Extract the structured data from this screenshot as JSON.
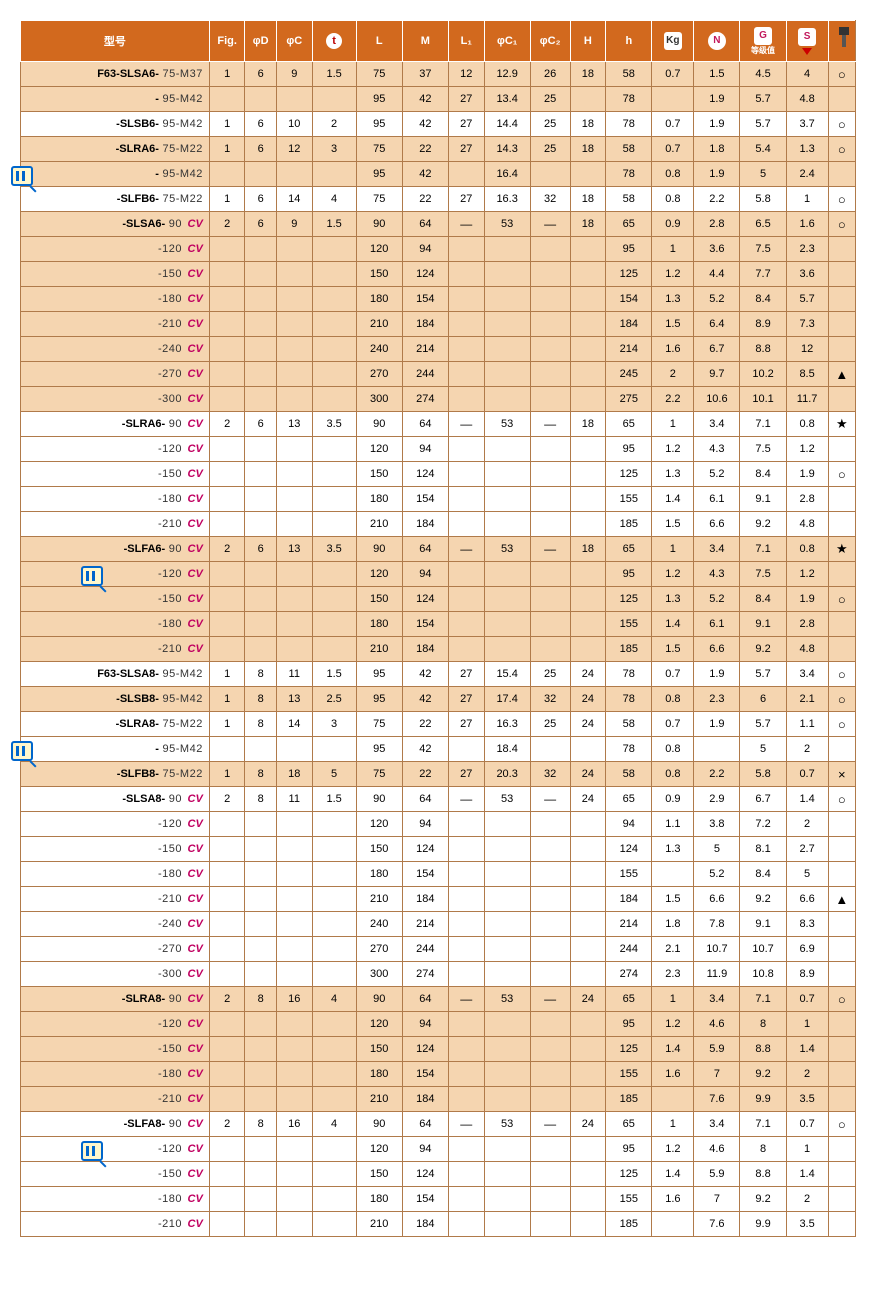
{
  "headers": {
    "model": "型号",
    "fig": "Fig.",
    "phiD": "φD",
    "phiC": "φC",
    "t": "t",
    "L": "L",
    "M": "M",
    "L1": "L₁",
    "phiC1": "φC₁",
    "phiC2": "φC₂",
    "H": "H",
    "h": "h",
    "kg": "Kg",
    "N": "N",
    "G": "G",
    "G_sub": "等级值",
    "S": "S",
    "sym": ""
  },
  "colors": {
    "header_bg": "#d2691e",
    "row_odd": "#f5d5b0",
    "row_even": "#ffffff",
    "border": "#b07a4a",
    "cv": "#c00060"
  },
  "rows": [
    {
      "m": [
        "F63",
        "-SLSA6-",
        " 75-M37",
        ""
      ],
      "fig": "1",
      "d": "6",
      "c": "9",
      "t": "1.5",
      "L": "75",
      "M": "37",
      "L1": "12",
      "C1": "12.9",
      "C2": "26",
      "H": "18",
      "h": "58",
      "kg": "0.7",
      "N": "1.5",
      "G": "4.5",
      "S": "4",
      "sym": "○",
      "odd": 1,
      "badge": ""
    },
    {
      "m": [
        "",
        "-",
        " 95-M42",
        ""
      ],
      "fig": "",
      "d": "",
      "c": "",
      "t": "",
      "L": "95",
      "M": "42",
      "L1": "27",
      "C1": "13.4",
      "C2": "25",
      "H": "",
      "h": "78",
      "kg": "",
      "N": "1.9",
      "G": "5.7",
      "S": "4.8",
      "sym": "",
      "odd": 1,
      "badge": ""
    },
    {
      "m": [
        "",
        "-SLSB6-",
        " 95-M42",
        ""
      ],
      "fig": "1",
      "d": "6",
      "c": "10",
      "t": "2",
      "L": "95",
      "M": "42",
      "L1": "27",
      "C1": "14.4",
      "C2": "25",
      "H": "18",
      "h": "78",
      "kg": "0.7",
      "N": "1.9",
      "G": "5.7",
      "S": "3.7",
      "sym": "○",
      "odd": 0,
      "badge": ""
    },
    {
      "m": [
        "",
        "-SLRA6-",
        " 75-M22",
        ""
      ],
      "fig": "1",
      "d": "6",
      "c": "12",
      "t": "3",
      "L": "75",
      "M": "22",
      "L1": "27",
      "C1": "14.3",
      "C2": "25",
      "H": "18",
      "h": "58",
      "kg": "0.7",
      "N": "1.8",
      "G": "5.4",
      "S": "1.3",
      "sym": "○",
      "odd": 1,
      "badge": ""
    },
    {
      "m": [
        "",
        "-",
        " 95-M42",
        ""
      ],
      "fig": "",
      "d": "",
      "c": "",
      "t": "",
      "L": "95",
      "M": "42",
      "L1": "",
      "C1": "16.4",
      "C2": "",
      "H": "",
      "h": "78",
      "kg": "0.8",
      "N": "1.9",
      "G": "5",
      "S": "2.4",
      "sym": "",
      "odd": 1,
      "badge": "left"
    },
    {
      "m": [
        "",
        "-SLFB6-",
        " 75-M22",
        ""
      ],
      "fig": "1",
      "d": "6",
      "c": "14",
      "t": "4",
      "L": "75",
      "M": "22",
      "L1": "27",
      "C1": "16.3",
      "C2": "32",
      "H": "18",
      "h": "58",
      "kg": "0.8",
      "N": "2.2",
      "G": "5.8",
      "S": "1",
      "sym": "○",
      "odd": 0,
      "badge": ""
    },
    {
      "m": [
        "",
        "-SLSA6-",
        " 90 ",
        "cv"
      ],
      "fig": "2",
      "d": "6",
      "c": "9",
      "t": "1.5",
      "L": "90",
      "M": "64",
      "L1": "—",
      "C1": "53",
      "C2": "—",
      "H": "18",
      "h": "65",
      "kg": "0.9",
      "N": "2.8",
      "G": "6.5",
      "S": "1.6",
      "sym": "○",
      "odd": 1,
      "badge": ""
    },
    {
      "m": [
        "",
        "",
        "-120 ",
        "cv"
      ],
      "fig": "",
      "d": "",
      "c": "",
      "t": "",
      "L": "120",
      "M": "94",
      "L1": "",
      "C1": "",
      "C2": "",
      "H": "",
      "h": "95",
      "kg": "1",
      "N": "3.6",
      "G": "7.5",
      "S": "2.3",
      "sym": "",
      "odd": 1,
      "badge": ""
    },
    {
      "m": [
        "",
        "",
        "-150 ",
        "cv"
      ],
      "fig": "",
      "d": "",
      "c": "",
      "t": "",
      "L": "150",
      "M": "124",
      "L1": "",
      "C1": "",
      "C2": "",
      "H": "",
      "h": "125",
      "kg": "1.2",
      "N": "4.4",
      "G": "7.7",
      "S": "3.6",
      "sym": "",
      "odd": 1,
      "badge": ""
    },
    {
      "m": [
        "",
        "",
        "-180 ",
        "cv"
      ],
      "fig": "",
      "d": "",
      "c": "",
      "t": "",
      "L": "180",
      "M": "154",
      "L1": "",
      "C1": "",
      "C2": "",
      "H": "",
      "h": "154",
      "kg": "1.3",
      "N": "5.2",
      "G": "8.4",
      "S": "5.7",
      "sym": "",
      "odd": 1,
      "badge": ""
    },
    {
      "m": [
        "",
        "",
        "-210 ",
        "cv"
      ],
      "fig": "",
      "d": "",
      "c": "",
      "t": "",
      "L": "210",
      "M": "184",
      "L1": "",
      "C1": "",
      "C2": "",
      "H": "",
      "h": "184",
      "kg": "1.5",
      "N": "6.4",
      "G": "8.9",
      "S": "7.3",
      "sym": "",
      "odd": 1,
      "badge": ""
    },
    {
      "m": [
        "",
        "",
        "-240 ",
        "cv"
      ],
      "fig": "",
      "d": "",
      "c": "",
      "t": "",
      "L": "240",
      "M": "214",
      "L1": "",
      "C1": "",
      "C2": "",
      "H": "",
      "h": "214",
      "kg": "1.6",
      "N": "6.7",
      "G": "8.8",
      "S": "12",
      "sym": "",
      "odd": 1,
      "badge": ""
    },
    {
      "m": [
        "",
        "",
        "-270 ",
        "cv"
      ],
      "fig": "",
      "d": "",
      "c": "",
      "t": "",
      "L": "270",
      "M": "244",
      "L1": "",
      "C1": "",
      "C2": "",
      "H": "",
      "h": "245",
      "kg": "2",
      "N": "9.7",
      "G": "10.2",
      "S": "8.5",
      "sym": "▲",
      "odd": 1,
      "badge": ""
    },
    {
      "m": [
        "",
        "",
        "-300 ",
        "cv"
      ],
      "fig": "",
      "d": "",
      "c": "",
      "t": "",
      "L": "300",
      "M": "274",
      "L1": "",
      "C1": "",
      "C2": "",
      "H": "",
      "h": "275",
      "kg": "2.2",
      "N": "10.6",
      "G": "10.1",
      "S": "11.7",
      "sym": "",
      "odd": 1,
      "badge": ""
    },
    {
      "m": [
        "",
        "-SLRA6-",
        " 90 ",
        "cv"
      ],
      "fig": "2",
      "d": "6",
      "c": "13",
      "t": "3.5",
      "L": "90",
      "M": "64",
      "L1": "—",
      "C1": "53",
      "C2": "—",
      "H": "18",
      "h": "65",
      "kg": "1",
      "N": "3.4",
      "G": "7.1",
      "S": "0.8",
      "sym": "★",
      "odd": 0,
      "badge": ""
    },
    {
      "m": [
        "",
        "",
        "-120 ",
        "cv"
      ],
      "fig": "",
      "d": "",
      "c": "",
      "t": "",
      "L": "120",
      "M": "94",
      "L1": "",
      "C1": "",
      "C2": "",
      "H": "",
      "h": "95",
      "kg": "1.2",
      "N": "4.3",
      "G": "7.5",
      "S": "1.2",
      "sym": "",
      "odd": 0,
      "badge": ""
    },
    {
      "m": [
        "",
        "",
        "-150 ",
        "cv"
      ],
      "fig": "",
      "d": "",
      "c": "",
      "t": "",
      "L": "150",
      "M": "124",
      "L1": "",
      "C1": "",
      "C2": "",
      "H": "",
      "h": "125",
      "kg": "1.3",
      "N": "5.2",
      "G": "8.4",
      "S": "1.9",
      "sym": "○",
      "odd": 0,
      "badge": ""
    },
    {
      "m": [
        "",
        "",
        "-180 ",
        "cv"
      ],
      "fig": "",
      "d": "",
      "c": "",
      "t": "",
      "L": "180",
      "M": "154",
      "L1": "",
      "C1": "",
      "C2": "",
      "H": "",
      "h": "155",
      "kg": "1.4",
      "N": "6.1",
      "G": "9.1",
      "S": "2.8",
      "sym": "",
      "odd": 0,
      "badge": ""
    },
    {
      "m": [
        "",
        "",
        "-210 ",
        "cv"
      ],
      "fig": "",
      "d": "",
      "c": "",
      "t": "",
      "L": "210",
      "M": "184",
      "L1": "",
      "C1": "",
      "C2": "",
      "H": "",
      "h": "185",
      "kg": "1.5",
      "N": "6.6",
      "G": "9.2",
      "S": "4.8",
      "sym": "",
      "odd": 0,
      "badge": ""
    },
    {
      "m": [
        "",
        "-SLFA6-",
        " 90 ",
        "cv"
      ],
      "fig": "2",
      "d": "6",
      "c": "13",
      "t": "3.5",
      "L": "90",
      "M": "64",
      "L1": "—",
      "C1": "53",
      "C2": "—",
      "H": "18",
      "h": "65",
      "kg": "1",
      "N": "3.4",
      "G": "7.1",
      "S": "0.8",
      "sym": "★",
      "odd": 1,
      "badge": ""
    },
    {
      "m": [
        "",
        "",
        "-120 ",
        "cv"
      ],
      "fig": "",
      "d": "",
      "c": "",
      "t": "",
      "L": "120",
      "M": "94",
      "L1": "",
      "C1": "",
      "C2": "",
      "H": "",
      "h": "95",
      "kg": "1.2",
      "N": "4.3",
      "G": "7.5",
      "S": "1.2",
      "sym": "",
      "odd": 1,
      "badge": "in"
    },
    {
      "m": [
        "",
        "",
        "-150 ",
        "cv"
      ],
      "fig": "",
      "d": "",
      "c": "",
      "t": "",
      "L": "150",
      "M": "124",
      "L1": "",
      "C1": "",
      "C2": "",
      "H": "",
      "h": "125",
      "kg": "1.3",
      "N": "5.2",
      "G": "8.4",
      "S": "1.9",
      "sym": "○",
      "odd": 1,
      "badge": ""
    },
    {
      "m": [
        "",
        "",
        "-180 ",
        "cv"
      ],
      "fig": "",
      "d": "",
      "c": "",
      "t": "",
      "L": "180",
      "M": "154",
      "L1": "",
      "C1": "",
      "C2": "",
      "H": "",
      "h": "155",
      "kg": "1.4",
      "N": "6.1",
      "G": "9.1",
      "S": "2.8",
      "sym": "",
      "odd": 1,
      "badge": ""
    },
    {
      "m": [
        "",
        "",
        "-210 ",
        "cv"
      ],
      "fig": "",
      "d": "",
      "c": "",
      "t": "",
      "L": "210",
      "M": "184",
      "L1": "",
      "C1": "",
      "C2": "",
      "H": "",
      "h": "185",
      "kg": "1.5",
      "N": "6.6",
      "G": "9.2",
      "S": "4.8",
      "sym": "",
      "odd": 1,
      "badge": ""
    },
    {
      "m": [
        "F63",
        "-SLSA8-",
        " 95-M42",
        ""
      ],
      "fig": "1",
      "d": "8",
      "c": "11",
      "t": "1.5",
      "L": "95",
      "M": "42",
      "L1": "27",
      "C1": "15.4",
      "C2": "25",
      "H": "24",
      "h": "78",
      "kg": "0.7",
      "N": "1.9",
      "G": "5.7",
      "S": "3.4",
      "sym": "○",
      "odd": 0,
      "badge": ""
    },
    {
      "m": [
        "",
        "-SLSB8-",
        " 95-M42",
        ""
      ],
      "fig": "1",
      "d": "8",
      "c": "13",
      "t": "2.5",
      "L": "95",
      "M": "42",
      "L1": "27",
      "C1": "17.4",
      "C2": "32",
      "H": "24",
      "h": "78",
      "kg": "0.8",
      "N": "2.3",
      "G": "6",
      "S": "2.1",
      "sym": "○",
      "odd": 1,
      "badge": ""
    },
    {
      "m": [
        "",
        "-SLRA8-",
        " 75-M22",
        ""
      ],
      "fig": "1",
      "d": "8",
      "c": "14",
      "t": "3",
      "L": "75",
      "M": "22",
      "L1": "27",
      "C1": "16.3",
      "C2": "25",
      "H": "24",
      "h": "58",
      "kg": "0.7",
      "N": "1.9",
      "G": "5.7",
      "S": "1.1",
      "sym": "○",
      "odd": 0,
      "badge": ""
    },
    {
      "m": [
        "",
        "-",
        " 95-M42",
        ""
      ],
      "fig": "",
      "d": "",
      "c": "",
      "t": "",
      "L": "95",
      "M": "42",
      "L1": "",
      "C1": "18.4",
      "C2": "",
      "H": "",
      "h": "78",
      "kg": "0.8",
      "N": "",
      "G": "5",
      "S": "2",
      "sym": "",
      "odd": 0,
      "badge": "left"
    },
    {
      "m": [
        "",
        "-SLFB8-",
        " 75-M22",
        ""
      ],
      "fig": "1",
      "d": "8",
      "c": "18",
      "t": "5",
      "L": "75",
      "M": "22",
      "L1": "27",
      "C1": "20.3",
      "C2": "32",
      "H": "24",
      "h": "58",
      "kg": "0.8",
      "N": "2.2",
      "G": "5.8",
      "S": "0.7",
      "sym": "×",
      "odd": 1,
      "badge": ""
    },
    {
      "m": [
        "",
        "-SLSA8-",
        " 90 ",
        "cv"
      ],
      "fig": "2",
      "d": "8",
      "c": "11",
      "t": "1.5",
      "L": "90",
      "M": "64",
      "L1": "—",
      "C1": "53",
      "C2": "—",
      "H": "24",
      "h": "65",
      "kg": "0.9",
      "N": "2.9",
      "G": "6.7",
      "S": "1.4",
      "sym": "○",
      "odd": 0,
      "badge": ""
    },
    {
      "m": [
        "",
        "",
        "-120 ",
        "cv"
      ],
      "fig": "",
      "d": "",
      "c": "",
      "t": "",
      "L": "120",
      "M": "94",
      "L1": "",
      "C1": "",
      "C2": "",
      "H": "",
      "h": "94",
      "kg": "1.1",
      "N": "3.8",
      "G": "7.2",
      "S": "2",
      "sym": "",
      "odd": 0,
      "badge": ""
    },
    {
      "m": [
        "",
        "",
        "-150 ",
        "cv"
      ],
      "fig": "",
      "d": "",
      "c": "",
      "t": "",
      "L": "150",
      "M": "124",
      "L1": "",
      "C1": "",
      "C2": "",
      "H": "",
      "h": "124",
      "kg": "1.3",
      "N": "5",
      "G": "8.1",
      "S": "2.7",
      "sym": "",
      "odd": 0,
      "badge": ""
    },
    {
      "m": [
        "",
        "",
        "-180 ",
        "cv"
      ],
      "fig": "",
      "d": "",
      "c": "",
      "t": "",
      "L": "180",
      "M": "154",
      "L1": "",
      "C1": "",
      "C2": "",
      "H": "",
      "h": "155",
      "kg": "",
      "N": "5.2",
      "G": "8.4",
      "S": "5",
      "sym": "",
      "odd": 0,
      "badge": ""
    },
    {
      "m": [
        "",
        "",
        "-210 ",
        "cv"
      ],
      "fig": "",
      "d": "",
      "c": "",
      "t": "",
      "L": "210",
      "M": "184",
      "L1": "",
      "C1": "",
      "C2": "",
      "H": "",
      "h": "184",
      "kg": "1.5",
      "N": "6.6",
      "G": "9.2",
      "S": "6.6",
      "sym": "▲",
      "odd": 0,
      "badge": ""
    },
    {
      "m": [
        "",
        "",
        "-240 ",
        "cv"
      ],
      "fig": "",
      "d": "",
      "c": "",
      "t": "",
      "L": "240",
      "M": "214",
      "L1": "",
      "C1": "",
      "C2": "",
      "H": "",
      "h": "214",
      "kg": "1.8",
      "N": "7.8",
      "G": "9.1",
      "S": "8.3",
      "sym": "",
      "odd": 0,
      "badge": ""
    },
    {
      "m": [
        "",
        "",
        "-270 ",
        "cv"
      ],
      "fig": "",
      "d": "",
      "c": "",
      "t": "",
      "L": "270",
      "M": "244",
      "L1": "",
      "C1": "",
      "C2": "",
      "H": "",
      "h": "244",
      "kg": "2.1",
      "N": "10.7",
      "G": "10.7",
      "S": "6.9",
      "sym": "",
      "odd": 0,
      "badge": ""
    },
    {
      "m": [
        "",
        "",
        "-300 ",
        "cv"
      ],
      "fig": "",
      "d": "",
      "c": "",
      "t": "",
      "L": "300",
      "M": "274",
      "L1": "",
      "C1": "",
      "C2": "",
      "H": "",
      "h": "274",
      "kg": "2.3",
      "N": "11.9",
      "G": "10.8",
      "S": "8.9",
      "sym": "",
      "odd": 0,
      "badge": ""
    },
    {
      "m": [
        "",
        "-SLRA8-",
        " 90 ",
        "cv"
      ],
      "fig": "2",
      "d": "8",
      "c": "16",
      "t": "4",
      "L": "90",
      "M": "64",
      "L1": "—",
      "C1": "53",
      "C2": "—",
      "H": "24",
      "h": "65",
      "kg": "1",
      "N": "3.4",
      "G": "7.1",
      "S": "0.7",
      "sym": "○",
      "odd": 1,
      "badge": ""
    },
    {
      "m": [
        "",
        "",
        "-120 ",
        "cv"
      ],
      "fig": "",
      "d": "",
      "c": "",
      "t": "",
      "L": "120",
      "M": "94",
      "L1": "",
      "C1": "",
      "C2": "",
      "H": "",
      "h": "95",
      "kg": "1.2",
      "N": "4.6",
      "G": "8",
      "S": "1",
      "sym": "",
      "odd": 1,
      "badge": ""
    },
    {
      "m": [
        "",
        "",
        "-150 ",
        "cv"
      ],
      "fig": "",
      "d": "",
      "c": "",
      "t": "",
      "L": "150",
      "M": "124",
      "L1": "",
      "C1": "",
      "C2": "",
      "H": "",
      "h": "125",
      "kg": "1.4",
      "N": "5.9",
      "G": "8.8",
      "S": "1.4",
      "sym": "",
      "odd": 1,
      "badge": ""
    },
    {
      "m": [
        "",
        "",
        "-180 ",
        "cv"
      ],
      "fig": "",
      "d": "",
      "c": "",
      "t": "",
      "L": "180",
      "M": "154",
      "L1": "",
      "C1": "",
      "C2": "",
      "H": "",
      "h": "155",
      "kg": "1.6",
      "N": "7",
      "G": "9.2",
      "S": "2",
      "sym": "",
      "odd": 1,
      "badge": ""
    },
    {
      "m": [
        "",
        "",
        "-210 ",
        "cv"
      ],
      "fig": "",
      "d": "",
      "c": "",
      "t": "",
      "L": "210",
      "M": "184",
      "L1": "",
      "C1": "",
      "C2": "",
      "H": "",
      "h": "185",
      "kg": "",
      "N": "7.6",
      "G": "9.9",
      "S": "3.5",
      "sym": "",
      "odd": 1,
      "badge": ""
    },
    {
      "m": [
        "",
        "-SLFA8-",
        " 90 ",
        "cv"
      ],
      "fig": "2",
      "d": "8",
      "c": "16",
      "t": "4",
      "L": "90",
      "M": "64",
      "L1": "—",
      "C1": "53",
      "C2": "—",
      "H": "24",
      "h": "65",
      "kg": "1",
      "N": "3.4",
      "G": "7.1",
      "S": "0.7",
      "sym": "○",
      "odd": 0,
      "badge": ""
    },
    {
      "m": [
        "",
        "",
        "-120 ",
        "cv"
      ],
      "fig": "",
      "d": "",
      "c": "",
      "t": "",
      "L": "120",
      "M": "94",
      "L1": "",
      "C1": "",
      "C2": "",
      "H": "",
      "h": "95",
      "kg": "1.2",
      "N": "4.6",
      "G": "8",
      "S": "1",
      "sym": "",
      "odd": 0,
      "badge": "in"
    },
    {
      "m": [
        "",
        "",
        "-150 ",
        "cv"
      ],
      "fig": "",
      "d": "",
      "c": "",
      "t": "",
      "L": "150",
      "M": "124",
      "L1": "",
      "C1": "",
      "C2": "",
      "H": "",
      "h": "125",
      "kg": "1.4",
      "N": "5.9",
      "G": "8.8",
      "S": "1.4",
      "sym": "",
      "odd": 0,
      "badge": ""
    },
    {
      "m": [
        "",
        "",
        "-180 ",
        "cv"
      ],
      "fig": "",
      "d": "",
      "c": "",
      "t": "",
      "L": "180",
      "M": "154",
      "L1": "",
      "C1": "",
      "C2": "",
      "H": "",
      "h": "155",
      "kg": "1.6",
      "N": "7",
      "G": "9.2",
      "S": "2",
      "sym": "",
      "odd": 0,
      "badge": ""
    },
    {
      "m": [
        "",
        "",
        "-210 ",
        "cv"
      ],
      "fig": "",
      "d": "",
      "c": "",
      "t": "",
      "L": "210",
      "M": "184",
      "L1": "",
      "C1": "",
      "C2": "",
      "H": "",
      "h": "185",
      "kg": "",
      "N": "7.6",
      "G": "9.9",
      "S": "3.5",
      "sym": "",
      "odd": 0,
      "badge": ""
    }
  ]
}
